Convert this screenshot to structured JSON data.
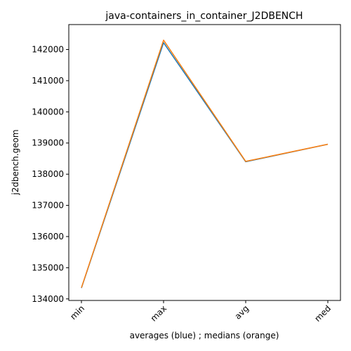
{
  "chart_data": {
    "type": "line",
    "title": "java-containers_in_container_J2DBENCH",
    "xlabel": "averages (blue) ; medians (orange)",
    "ylabel": "j2dbench.geom",
    "categories": [
      "min",
      "max",
      "avg",
      "med"
    ],
    "ylim": [
      133950,
      142800
    ],
    "yticks": [
      134000,
      135000,
      136000,
      137000,
      138000,
      139000,
      140000,
      141000,
      142000
    ],
    "grid": false,
    "series": [
      {
        "color": "#1f77b4",
        "values": [
          134350,
          142220,
          138400,
          138960
        ]
      },
      {
        "color": "#ff7f0e",
        "values": [
          134360,
          142300,
          138410,
          138960
        ]
      }
    ]
  }
}
